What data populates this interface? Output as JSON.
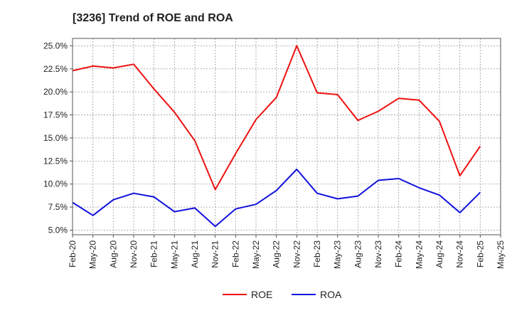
{
  "chart_data": {
    "type": "line",
    "title": "[3236]  Trend of ROE and ROA",
    "xlabel": "",
    "ylabel": "",
    "ylim": [
      4.5,
      25.8
    ],
    "yticks": [
      5.0,
      7.5,
      10.0,
      12.5,
      15.0,
      17.5,
      20.0,
      22.5,
      25.0
    ],
    "ytick_labels": [
      "5.0%",
      "7.5%",
      "10.0%",
      "12.5%",
      "15.0%",
      "17.5%",
      "20.0%",
      "22.5%",
      "25.0%"
    ],
    "categories": [
      "Feb-20",
      "May-20",
      "Aug-20",
      "Nov-20",
      "Feb-21",
      "May-21",
      "Aug-21",
      "Nov-21",
      "Feb-22",
      "May-22",
      "Aug-22",
      "Nov-22",
      "Feb-23",
      "May-23",
      "Aug-23",
      "Nov-23",
      "Feb-24",
      "May-24",
      "Aug-24",
      "Nov-24",
      "Feb-25",
      "May-25"
    ],
    "grid": true,
    "legend_position": "bottom-center",
    "series": [
      {
        "name": "ROE",
        "color": "#ee1111",
        "values": [
          22.3,
          22.8,
          22.6,
          23.0,
          20.3,
          17.8,
          14.7,
          9.4,
          13.3,
          17.0,
          19.4,
          25.0,
          19.9,
          19.7,
          16.9,
          17.9,
          19.3,
          19.1,
          16.8,
          10.9,
          14.1,
          null
        ]
      },
      {
        "name": "ROA",
        "color": "#1111dd",
        "values": [
          8.0,
          6.6,
          8.3,
          9.0,
          8.6,
          7.0,
          7.4,
          5.4,
          7.3,
          7.8,
          9.3,
          11.6,
          9.0,
          8.4,
          8.7,
          10.4,
          10.6,
          9.6,
          8.8,
          6.9,
          9.1,
          null
        ]
      }
    ]
  }
}
